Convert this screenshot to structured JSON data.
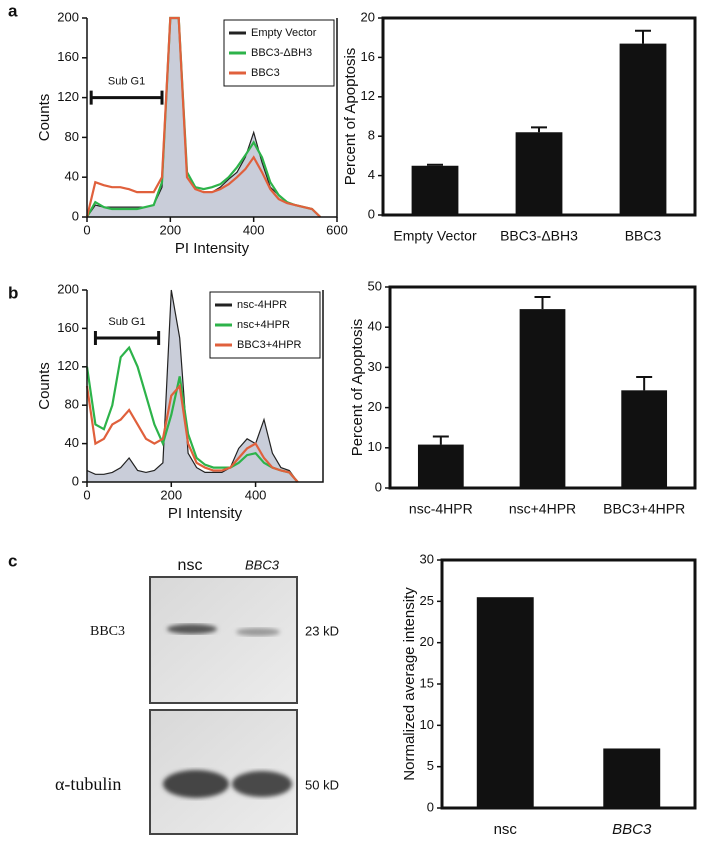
{
  "chart_data": [
    {
      "type": "line",
      "panel": "a",
      "xlabel": "PI Intensity",
      "ylabel": "Counts",
      "x": [
        0,
        20,
        40,
        60,
        80,
        100,
        120,
        140,
        160,
        180,
        200,
        220,
        240,
        260,
        280,
        300,
        320,
        340,
        360,
        380,
        400,
        420,
        440,
        460,
        480,
        500,
        520,
        540,
        560
      ],
      "series": [
        {
          "name": "Empty Vector",
          "color": "#222222",
          "fill": "#c9cdd9",
          "values": [
            0,
            12,
            10,
            10,
            10,
            10,
            10,
            10,
            12,
            30,
            200,
            200,
            40,
            28,
            25,
            25,
            30,
            38,
            45,
            60,
            85,
            55,
            30,
            22,
            15,
            12,
            10,
            8,
            0
          ]
        },
        {
          "name": "BBC3-ΔBH3",
          "color": "#2db34a",
          "values": [
            0,
            15,
            10,
            8,
            8,
            8,
            8,
            10,
            12,
            35,
            200,
            200,
            45,
            30,
            28,
            30,
            33,
            40,
            50,
            62,
            75,
            60,
            35,
            22,
            15,
            12,
            10,
            8,
            0
          ]
        },
        {
          "name": "BBC3",
          "color": "#e0603c",
          "values": [
            0,
            35,
            32,
            30,
            30,
            28,
            25,
            25,
            25,
            40,
            200,
            200,
            40,
            28,
            25,
            25,
            28,
            33,
            40,
            48,
            60,
            45,
            28,
            18,
            14,
            12,
            10,
            8,
            0
          ]
        }
      ],
      "xlim": [
        0,
        600
      ],
      "xticks": [
        0,
        200,
        400,
        600
      ],
      "ylim": [
        0,
        200
      ],
      "yticks": [
        0,
        40,
        80,
        120,
        160,
        200
      ],
      "legend": "top-right",
      "annotation": {
        "text": "Sub G1",
        "range": [
          10,
          180
        ],
        "y": 120
      }
    },
    {
      "type": "bar",
      "ylabel": "Percent of Apoptosis",
      "categories": [
        "Empty Vector",
        "BBC3-ΔBH3",
        "BBC3"
      ],
      "values": [
        5,
        8.4,
        17.4
      ],
      "errors": [
        0.1,
        0.5,
        1.3
      ],
      "color": "#111111",
      "ylim": [
        0,
        20
      ],
      "yticks": [
        0,
        4,
        8,
        12,
        16,
        20
      ]
    },
    {
      "type": "line",
      "panel": "b",
      "xlabel": "PI Intensity",
      "ylabel": "Counts",
      "x": [
        0,
        20,
        40,
        60,
        80,
        100,
        120,
        140,
        160,
        180,
        200,
        220,
        240,
        260,
        280,
        300,
        320,
        340,
        360,
        380,
        400,
        420,
        440,
        460,
        480,
        500
      ],
      "series": [
        {
          "name": "nsc-4HPR",
          "color": "#222222",
          "fill": "#c9cdd9",
          "values": [
            12,
            8,
            8,
            10,
            15,
            25,
            12,
            10,
            12,
            20,
            200,
            150,
            30,
            15,
            10,
            10,
            10,
            15,
            35,
            45,
            40,
            65,
            30,
            15,
            12,
            0
          ]
        },
        {
          "name": "nsc+4HPR",
          "color": "#2db34a",
          "values": [
            120,
            60,
            55,
            80,
            130,
            140,
            120,
            90,
            60,
            40,
            70,
            110,
            50,
            25,
            18,
            15,
            15,
            15,
            20,
            28,
            30,
            20,
            15,
            12,
            10,
            0
          ]
        },
        {
          "name": "BBC3+4HPR",
          "color": "#e0603c",
          "values": [
            100,
            40,
            45,
            60,
            65,
            75,
            60,
            45,
            40,
            45,
            90,
            100,
            40,
            20,
            15,
            12,
            12,
            15,
            25,
            35,
            40,
            25,
            15,
            12,
            10,
            0
          ]
        }
      ],
      "xlim": [
        0,
        560
      ],
      "xticks": [
        0,
        200,
        400
      ],
      "ylim": [
        0,
        200
      ],
      "yticks": [
        0,
        40,
        80,
        120,
        160,
        200
      ],
      "legend": "top-right",
      "annotation": {
        "text": "Sub G1",
        "range": [
          20,
          170
        ],
        "y": 150
      }
    },
    {
      "type": "bar",
      "ylabel": "Percent of Apoptosis",
      "categories": [
        "nsc-4HPR",
        "nsc+4HPR",
        "BBC3+4HPR"
      ],
      "values": [
        10.8,
        44.5,
        24.3
      ],
      "errors": [
        2,
        3,
        3.3
      ],
      "color": "#111111",
      "ylim": [
        0,
        50
      ],
      "yticks": [
        0,
        10,
        20,
        30,
        40,
        50
      ]
    },
    {
      "type": "blot",
      "panel": "c",
      "lanes": [
        "nsc",
        "BBC3"
      ],
      "rows": [
        {
          "label": "BBC3",
          "size": "23 kD"
        },
        {
          "label": "α-tubulin",
          "size": "50 kD"
        }
      ]
    },
    {
      "type": "bar",
      "ylabel": "Normalized average intensity",
      "categories": [
        "nsc",
        "BBC3"
      ],
      "values": [
        25.5,
        7.2
      ],
      "color": "#111111",
      "ylim": [
        0,
        30
      ],
      "yticks": [
        0,
        5,
        10,
        15,
        20,
        25,
        30
      ]
    }
  ]
}
